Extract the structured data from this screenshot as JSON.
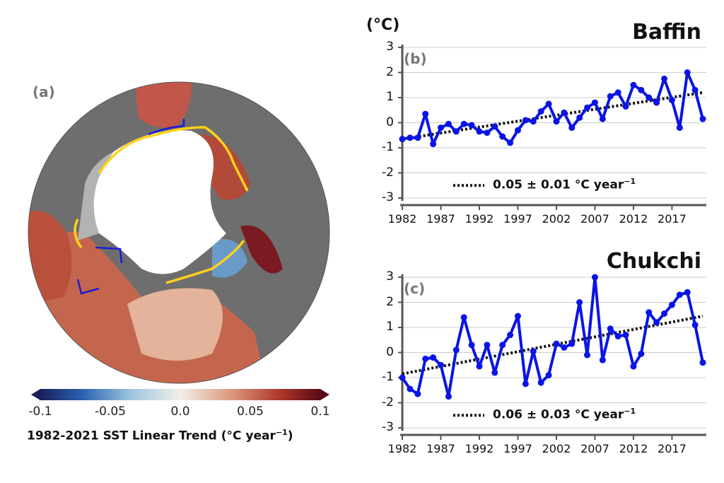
{
  "colors": {
    "series": "#0a14e6",
    "trend": "#111111",
    "grid": "#cccccc",
    "axis": "#555555",
    "land": "#707070",
    "ice": "#ffffff",
    "cb_neg": "#1a1f5c",
    "cb_mid": "#f2efea",
    "cb_pos": "#5a0a12",
    "ice_edge": "#ffd21a",
    "region_box": "#1a1ad6"
  },
  "map_panel": {
    "letter": "(a)",
    "colorbar": {
      "ticks": [
        "-0.1",
        "-0.05",
        "0.0",
        "0.05",
        "0.1"
      ],
      "tick_values": [
        -0.1,
        -0.05,
        0.0,
        0.05,
        0.1
      ],
      "label": "1982-2021 SST Linear Trend (°C year",
      "label_exp": "−1",
      "label_close": ")",
      "range": [
        -0.1,
        0.1
      ]
    }
  },
  "chart_data": [
    {
      "type": "line",
      "panel": "(b)",
      "title": "Baffin",
      "ylabel": "(°C)",
      "ylim": [
        -3,
        3
      ],
      "yticks": [
        3,
        2,
        1,
        0,
        -1,
        -2,
        -3
      ],
      "xlim": [
        1982,
        2021
      ],
      "xticks": [
        1982,
        1987,
        1992,
        1997,
        2002,
        2007,
        2012,
        2017
      ],
      "legend": "0.05 ± 0.01 °C year",
      "legend_exp": "−1",
      "trend": [
        [
          1982,
          -0.65
        ],
        [
          2021,
          1.2
        ]
      ],
      "x": [
        1982,
        1983,
        1984,
        1985,
        1986,
        1987,
        1988,
        1989,
        1990,
        1991,
        1992,
        1993,
        1994,
        1995,
        1996,
        1997,
        1998,
        1999,
        2000,
        2001,
        2002,
        2003,
        2004,
        2005,
        2006,
        2007,
        2008,
        2009,
        2010,
        2011,
        2012,
        2013,
        2014,
        2015,
        2016,
        2017,
        2018,
        2019,
        2020,
        2021
      ],
      "y": [
        -0.65,
        -0.6,
        -0.6,
        0.35,
        -0.85,
        -0.2,
        -0.05,
        -0.35,
        -0.05,
        -0.1,
        -0.35,
        -0.4,
        -0.15,
        -0.55,
        -0.8,
        -0.3,
        0.1,
        0.05,
        0.45,
        0.75,
        0.05,
        0.4,
        -0.2,
        0.2,
        0.6,
        0.8,
        0.15,
        1.05,
        1.2,
        0.65,
        1.5,
        1.3,
        1.0,
        0.8,
        1.75,
        0.9,
        -0.2,
        2.0,
        1.3,
        0.15
      ]
    },
    {
      "type": "line",
      "panel": "(c)",
      "title": "Chukchi",
      "ylabel": "",
      "ylim": [
        -3,
        3
      ],
      "yticks": [
        3,
        2,
        1,
        0,
        -1,
        -2,
        -3
      ],
      "xlim": [
        1982,
        2021
      ],
      "xticks": [
        1982,
        1987,
        1992,
        1997,
        2002,
        2007,
        2012,
        2017
      ],
      "legend": "0.06 ± 0.03 °C year",
      "legend_exp": "−1",
      "trend": [
        [
          1982,
          -0.85
        ],
        [
          2021,
          1.45
        ]
      ],
      "x": [
        1982,
        1983,
        1984,
        1985,
        1986,
        1987,
        1988,
        1989,
        1990,
        1991,
        1992,
        1993,
        1994,
        1995,
        1996,
        1997,
        1998,
        1999,
        2000,
        2001,
        2002,
        2003,
        2004,
        2005,
        2006,
        2007,
        2008,
        2009,
        2010,
        2011,
        2012,
        2013,
        2014,
        2015,
        2016,
        2017,
        2018,
        2019,
        2020,
        2021
      ],
      "y": [
        -1.0,
        -1.45,
        -1.65,
        -0.25,
        -0.2,
        -0.5,
        -1.75,
        0.1,
        1.4,
        0.3,
        -0.55,
        0.3,
        -0.8,
        0.3,
        0.7,
        1.45,
        -1.25,
        0.05,
        -1.2,
        -0.9,
        0.35,
        0.2,
        0.35,
        2.0,
        -0.1,
        3.0,
        -0.3,
        0.95,
        0.65,
        0.7,
        -0.55,
        -0.05,
        1.6,
        1.2,
        1.55,
        1.9,
        2.3,
        2.4,
        1.1,
        -0.4
      ]
    }
  ]
}
